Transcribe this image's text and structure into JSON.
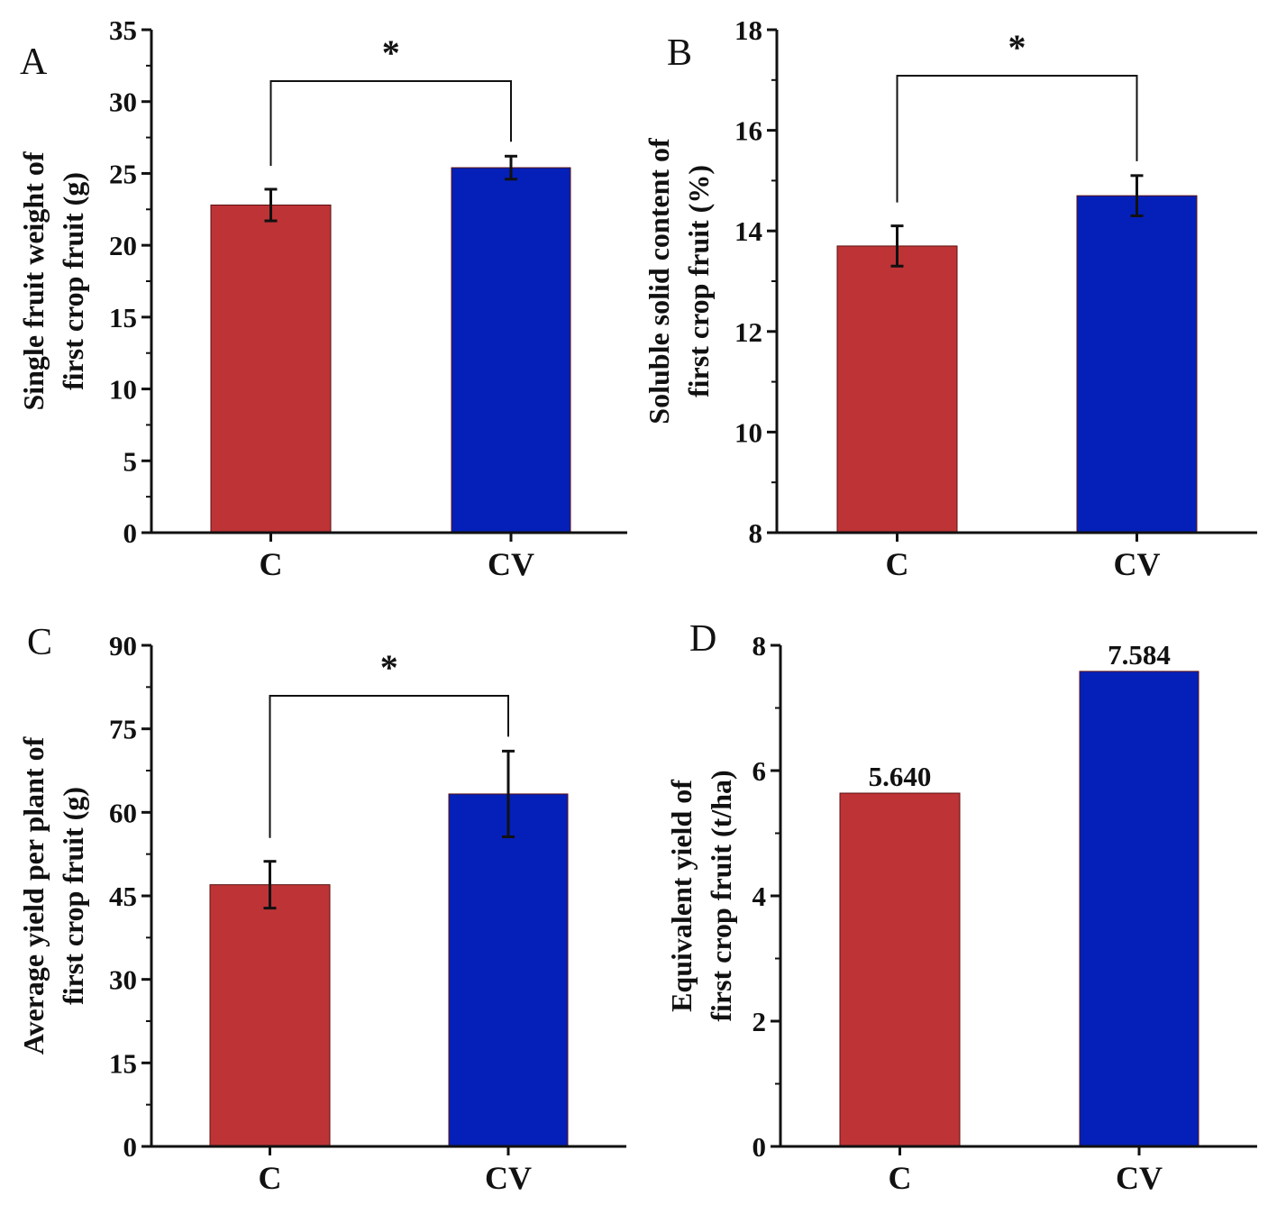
{
  "colors": {
    "C": "#bd3336",
    "CV": "#0420b8",
    "axis": "#111111"
  },
  "chart_data": [
    {
      "panel": "A",
      "type": "bar",
      "categories": [
        "C",
        "CV"
      ],
      "values": [
        22.8,
        25.4
      ],
      "errors": [
        1.1,
        0.8
      ],
      "ylabel_lines": [
        "Single fruit weight of",
        "first crop fruit (g)"
      ],
      "ylim": [
        0,
        35
      ],
      "yticks": [
        0,
        5,
        10,
        15,
        20,
        25,
        30,
        35
      ],
      "significance": "*"
    },
    {
      "panel": "B",
      "type": "bar",
      "categories": [
        "C",
        "CV"
      ],
      "values": [
        13.7,
        14.7
      ],
      "errors": [
        0.4,
        0.4
      ],
      "ylabel_lines": [
        "Soluble solid content of",
        "first crop fruit (%)"
      ],
      "ylim": [
        8,
        18
      ],
      "yticks": [
        8,
        10,
        12,
        14,
        16,
        18
      ],
      "significance": "*"
    },
    {
      "panel": "C",
      "type": "bar",
      "categories": [
        "C",
        "CV"
      ],
      "values": [
        47.0,
        63.3
      ],
      "errors": [
        4.2,
        7.7
      ],
      "ylabel_lines": [
        "Average yield per plant of",
        "first crop fruit (g)"
      ],
      "ylim": [
        0,
        90
      ],
      "yticks": [
        0,
        15,
        30,
        45,
        60,
        75,
        90
      ],
      "significance": "*"
    },
    {
      "panel": "D",
      "type": "bar",
      "categories": [
        "C",
        "CV"
      ],
      "values": [
        5.64,
        7.584
      ],
      "value_labels": [
        "5.640",
        "7.584"
      ],
      "ylabel_lines": [
        "Equivalent yield of",
        "first crop fruit (t/ha)"
      ],
      "ylim": [
        0,
        8
      ],
      "yticks": [
        0,
        2,
        4,
        6,
        8
      ]
    }
  ]
}
